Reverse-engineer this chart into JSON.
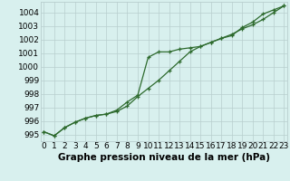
{
  "series1": [
    995.2,
    994.9,
    995.5,
    995.9,
    996.2,
    996.4,
    996.5,
    996.8,
    997.4,
    997.9,
    1000.7,
    1001.1,
    1001.1,
    1001.3,
    1001.4,
    1001.5,
    1001.8,
    1002.1,
    1002.3,
    1002.9,
    1003.3,
    1003.9,
    1004.2,
    1004.5
  ],
  "series2": [
    995.2,
    994.9,
    995.5,
    995.9,
    996.2,
    996.4,
    996.5,
    996.7,
    997.1,
    997.8,
    998.4,
    999.0,
    999.7,
    1000.4,
    1001.1,
    1001.5,
    1001.8,
    1002.1,
    1002.4,
    1002.8,
    1003.1,
    1003.5,
    1004.0,
    1004.5
  ],
  "hours": [
    0,
    1,
    2,
    3,
    4,
    5,
    6,
    7,
    8,
    9,
    10,
    11,
    12,
    13,
    14,
    15,
    16,
    17,
    18,
    19,
    20,
    21,
    22,
    23
  ],
  "ylim": [
    994.5,
    1004.8
  ],
  "yticks": [
    995,
    996,
    997,
    998,
    999,
    1000,
    1001,
    1002,
    1003,
    1004
  ],
  "line_color": "#2d6a2d",
  "bg_color": "#d8f0ee",
  "grid_color": "#b8cece",
  "xlabel": "Graphe pression niveau de la mer (hPa)",
  "xlabel_fontsize": 7.5,
  "tick_fontsize": 6.5
}
